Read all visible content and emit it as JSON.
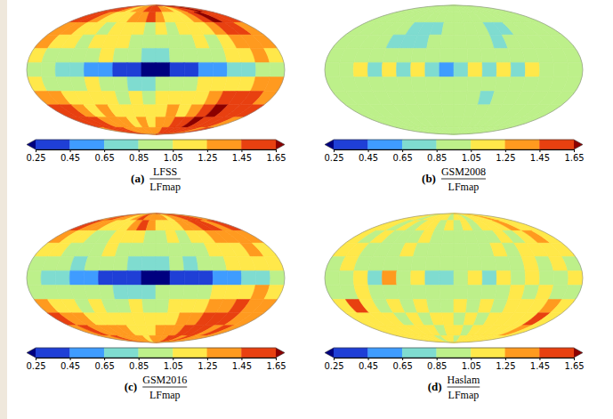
{
  "chart_data": [
    {
      "type": "heatmap",
      "label": "(a)",
      "title": {
        "numerator": "LFSS",
        "denominator": "LFmap"
      },
      "cells": [
        [
          1.5,
          1.6,
          1.5,
          1.3,
          1.2,
          1.3,
          1.4,
          1.5,
          1.6,
          1.5,
          1.4,
          1.3,
          1.2,
          1.3,
          1.5,
          1.6,
          1.7,
          1.5
        ],
        [
          1.6,
          1.5,
          1.3,
          1.2,
          1.1,
          1.2,
          1.3,
          1.4,
          1.5,
          1.4,
          1.2,
          1.1,
          1.2,
          1.3,
          1.5,
          1.7,
          1.6,
          1.5
        ],
        [
          1.4,
          1.3,
          1.2,
          1.1,
          1.0,
          1.1,
          1.2,
          1.1,
          1.0,
          1.1,
          1.0,
          1.1,
          1.2,
          1.1,
          1.3,
          1.5,
          1.6,
          1.4
        ],
        [
          1.3,
          1.2,
          1.1,
          1.0,
          1.1,
          1.2,
          1.1,
          1.0,
          0.9,
          1.0,
          0.9,
          1.0,
          1.1,
          1.0,
          1.2,
          1.3,
          1.4,
          1.3
        ],
        [
          1.1,
          1.0,
          0.9,
          0.9,
          1.0,
          1.1,
          1.0,
          0.9,
          0.8,
          0.8,
          0.9,
          0.9,
          1.0,
          1.0,
          1.1,
          1.2,
          1.3,
          1.2
        ],
        [
          1.0,
          0.9,
          0.8,
          0.7,
          0.6,
          0.5,
          0.4,
          0.3,
          0.2,
          0.2,
          0.3,
          0.4,
          0.5,
          0.6,
          0.7,
          0.8,
          0.9,
          1.0
        ],
        [
          1.1,
          1.0,
          0.9,
          1.0,
          1.1,
          1.0,
          0.9,
          0.8,
          0.8,
          0.9,
          0.9,
          1.0,
          1.1,
          1.2,
          1.1,
          1.2,
          1.4,
          1.3
        ],
        [
          1.4,
          1.3,
          1.2,
          1.1,
          1.2,
          1.1,
          1.0,
          1.1,
          1.0,
          1.1,
          1.2,
          1.1,
          1.2,
          1.4,
          1.5,
          1.6,
          1.5,
          1.4
        ],
        [
          1.6,
          1.5,
          1.4,
          1.2,
          1.3,
          1.2,
          1.1,
          1.2,
          1.1,
          1.2,
          1.3,
          1.2,
          1.4,
          1.6,
          1.7,
          1.6,
          1.5,
          1.5
        ],
        [
          1.5,
          1.6,
          1.5,
          1.4,
          1.3,
          1.4,
          1.2,
          1.3,
          1.2,
          1.3,
          1.4,
          1.5,
          1.6,
          1.7,
          1.6,
          1.5,
          1.6,
          1.4
        ],
        [
          1.4,
          1.5,
          1.6,
          1.5,
          1.4,
          1.3,
          1.4,
          1.3,
          1.3,
          1.4,
          1.5,
          1.6,
          1.6,
          1.5,
          1.6,
          1.5,
          1.4,
          1.5
        ]
      ],
      "colorbar": {
        "range": [
          0.25,
          1.65
        ],
        "ticks": [
          0.25,
          0.45,
          0.65,
          0.85,
          1.05,
          1.25,
          1.45,
          1.65
        ],
        "colors": [
          "#00007f",
          "#1f3fd6",
          "#3f9cff",
          "#7fdcd0",
          "#bdf08a",
          "#ffe84a",
          "#ff9a1f",
          "#e84010",
          "#8b0000"
        ]
      }
    },
    {
      "type": "heatmap",
      "label": "(b)",
      "title": {
        "numerator": "GSM2008",
        "denominator": "LFmap"
      },
      "cells": [
        [
          1.0,
          0.9,
          1.0,
          1.0,
          0.9,
          1.0,
          1.0,
          0.9,
          1.0,
          1.0,
          0.9,
          1.0,
          1.0,
          0.9,
          1.0,
          1.0,
          0.9,
          1.0
        ],
        [
          0.9,
          1.0,
          1.0,
          0.9,
          1.0,
          1.0,
          0.9,
          1.0,
          1.0,
          0.9,
          1.0,
          1.0,
          0.9,
          1.0,
          1.0,
          0.9,
          1.0,
          1.0
        ],
        [
          1.0,
          0.9,
          0.9,
          1.0,
          1.0,
          0.8,
          0.7,
          0.8,
          1.0,
          1.0,
          0.9,
          1.0,
          0.8,
          0.7,
          0.9,
          1.0,
          0.9,
          1.0
        ],
        [
          1.0,
          1.0,
          0.9,
          0.9,
          0.8,
          0.7,
          0.8,
          0.9,
          1.0,
          0.9,
          1.0,
          0.9,
          0.8,
          0.9,
          1.0,
          1.0,
          1.0,
          0.9
        ],
        [
          0.9,
          1.0,
          1.0,
          0.9,
          0.9,
          1.0,
          1.0,
          0.9,
          0.9,
          1.0,
          0.9,
          1.0,
          1.0,
          0.9,
          0.9,
          1.0,
          0.9,
          1.0
        ],
        [
          1.0,
          0.9,
          1.1,
          0.8,
          1.1,
          0.7,
          1.2,
          0.8,
          0.6,
          0.7,
          1.1,
          0.8,
          1.2,
          0.7,
          1.1,
          0.9,
          1.0,
          1.0
        ],
        [
          1.0,
          0.9,
          1.0,
          1.0,
          0.9,
          1.0,
          0.9,
          1.0,
          1.0,
          0.9,
          1.0,
          1.0,
          0.9,
          1.0,
          0.9,
          1.0,
          1.0,
          0.9
        ],
        [
          0.9,
          1.0,
          1.0,
          0.9,
          1.0,
          0.9,
          1.0,
          1.0,
          0.9,
          1.0,
          1.0,
          0.8,
          0.9,
          1.0,
          1.0,
          0.9,
          1.0,
          1.0
        ],
        [
          1.0,
          1.0,
          0.9,
          1.0,
          1.0,
          1.0,
          0.9,
          1.0,
          1.0,
          1.0,
          0.9,
          1.0,
          1.0,
          0.9,
          1.0,
          1.0,
          0.9,
          1.0
        ],
        [
          1.0,
          0.9,
          1.0,
          1.0,
          0.9,
          1.0,
          1.0,
          1.0,
          0.9,
          1.0,
          1.0,
          0.9,
          1.0,
          1.0,
          1.0,
          0.9,
          1.0,
          1.0
        ],
        [
          0.9,
          1.0,
          1.0,
          0.9,
          1.0,
          1.0,
          0.9,
          1.0,
          1.0,
          0.9,
          1.0,
          1.0,
          0.9,
          1.0,
          1.0,
          0.9,
          1.0,
          1.0
        ]
      ],
      "colorbar": {
        "range": [
          0.25,
          1.65
        ],
        "ticks": [
          0.25,
          0.45,
          0.65,
          0.85,
          1.05,
          1.25,
          1.45,
          1.65
        ],
        "colors": [
          "#00007f",
          "#1f3fd6",
          "#3f9cff",
          "#7fdcd0",
          "#bdf08a",
          "#ffe84a",
          "#ff9a1f",
          "#e84010",
          "#8b0000"
        ]
      }
    },
    {
      "type": "heatmap",
      "label": "(c)",
      "title": {
        "numerator": "GSM2016",
        "denominator": "LFmap"
      },
      "cells": [
        [
          1.4,
          1.5,
          1.4,
          1.3,
          1.2,
          1.3,
          1.5,
          1.4,
          1.3,
          1.4,
          1.3,
          1.2,
          1.3,
          1.4,
          1.5,
          1.6,
          1.5,
          1.4
        ],
        [
          1.5,
          1.4,
          1.3,
          1.2,
          1.1,
          1.2,
          1.3,
          1.5,
          1.4,
          1.2,
          1.1,
          1.2,
          1.3,
          1.4,
          1.6,
          1.5,
          1.4,
          1.5
        ],
        [
          1.3,
          1.2,
          1.1,
          1.0,
          1.0,
          1.1,
          1.2,
          1.1,
          1.0,
          1.0,
          1.1,
          1.0,
          1.1,
          1.2,
          1.3,
          1.4,
          1.3,
          1.3
        ],
        [
          1.2,
          1.1,
          1.0,
          0.9,
          1.0,
          1.1,
          1.0,
          0.9,
          0.9,
          0.9,
          1.0,
          0.9,
          1.0,
          1.1,
          1.2,
          1.2,
          1.3,
          1.2
        ],
        [
          1.0,
          0.9,
          0.9,
          0.8,
          0.9,
          1.0,
          0.9,
          0.8,
          0.8,
          0.8,
          0.9,
          0.8,
          0.9,
          1.0,
          1.1,
          1.1,
          1.2,
          1.1
        ],
        [
          0.9,
          0.8,
          0.7,
          0.6,
          0.5,
          0.4,
          0.3,
          0.3,
          0.2,
          0.2,
          0.3,
          0.3,
          0.4,
          0.5,
          0.6,
          0.7,
          0.8,
          0.9
        ],
        [
          1.0,
          0.9,
          0.9,
          0.9,
          1.0,
          0.9,
          0.8,
          0.8,
          0.8,
          0.9,
          0.9,
          1.0,
          1.0,
          1.1,
          1.1,
          1.2,
          1.3,
          1.2
        ],
        [
          1.3,
          1.2,
          1.1,
          1.0,
          1.1,
          1.0,
          1.0,
          1.1,
          1.0,
          1.0,
          1.1,
          1.1,
          1.2,
          1.3,
          1.4,
          1.5,
          1.4,
          1.3
        ],
        [
          1.5,
          1.4,
          1.3,
          1.2,
          1.2,
          1.1,
          1.1,
          1.2,
          1.1,
          1.2,
          1.2,
          1.3,
          1.3,
          1.5,
          1.6,
          1.5,
          1.4,
          1.4
        ],
        [
          1.4,
          1.5,
          1.4,
          1.3,
          1.3,
          1.3,
          1.2,
          1.2,
          1.2,
          1.3,
          1.3,
          1.4,
          1.5,
          1.6,
          1.5,
          1.4,
          1.5,
          1.4
        ],
        [
          1.3,
          1.4,
          1.5,
          1.4,
          1.3,
          1.3,
          1.3,
          1.2,
          1.3,
          1.3,
          1.4,
          1.5,
          1.5,
          1.4,
          1.5,
          1.4,
          1.4,
          1.4
        ]
      ],
      "colorbar": {
        "range": [
          0.25,
          1.65
        ],
        "ticks": [
          0.25,
          0.45,
          0.65,
          0.85,
          1.05,
          1.25,
          1.45,
          1.65
        ],
        "colors": [
          "#00007f",
          "#1f3fd6",
          "#3f9cff",
          "#7fdcd0",
          "#bdf08a",
          "#ffe84a",
          "#ff9a1f",
          "#e84010",
          "#8b0000"
        ]
      }
    },
    {
      "type": "heatmap",
      "label": "(d)",
      "title": {
        "numerator": "Haslam",
        "denominator": "LFmap"
      },
      "cells": [
        [
          1.1,
          1.2,
          1.1,
          1.0,
          1.1,
          1.1,
          1.2,
          1.1,
          1.0,
          1.1,
          1.1,
          1.0,
          1.1,
          1.2,
          1.1,
          1.3,
          1.2,
          1.1
        ],
        [
          1.2,
          1.1,
          1.0,
          1.1,
          1.0,
          1.1,
          1.1,
          1.0,
          1.1,
          1.0,
          1.1,
          1.0,
          1.1,
          1.1,
          1.2,
          1.3,
          1.2,
          1.2
        ],
        [
          1.1,
          1.0,
          1.1,
          1.0,
          0.9,
          1.0,
          1.1,
          1.0,
          1.0,
          1.0,
          0.9,
          1.0,
          1.0,
          1.1,
          1.0,
          1.2,
          1.3,
          1.1
        ],
        [
          1.1,
          1.1,
          1.0,
          1.0,
          1.0,
          1.1,
          1.0,
          0.9,
          1.0,
          0.9,
          1.0,
          1.0,
          1.1,
          1.0,
          1.1,
          1.1,
          1.2,
          1.1
        ],
        [
          1.0,
          1.1,
          1.0,
          0.9,
          1.0,
          1.0,
          0.9,
          1.0,
          0.9,
          1.0,
          0.9,
          1.0,
          1.0,
          1.0,
          1.1,
          1.0,
          1.1,
          1.0
        ],
        [
          1.0,
          0.9,
          1.2,
          0.8,
          1.3,
          0.9,
          1.1,
          0.8,
          0.7,
          0.9,
          1.1,
          0.7,
          1.2,
          0.9,
          1.1,
          1.0,
          0.9,
          1.1
        ],
        [
          1.0,
          1.0,
          1.1,
          1.0,
          0.9,
          1.0,
          1.0,
          0.9,
          1.0,
          1.0,
          0.9,
          1.0,
          1.0,
          1.1,
          1.0,
          1.1,
          1.0,
          1.0
        ],
        [
          1.1,
          1.6,
          1.1,
          1.0,
          1.1,
          1.0,
          1.1,
          1.0,
          1.0,
          1.1,
          1.0,
          1.1,
          1.0,
          1.1,
          1.2,
          1.1,
          1.4,
          1.1
        ],
        [
          1.1,
          1.2,
          1.1,
          1.1,
          1.0,
          1.1,
          1.0,
          1.1,
          1.1,
          1.0,
          1.1,
          1.0,
          1.1,
          1.2,
          1.1,
          1.2,
          1.5,
          1.2
        ],
        [
          1.2,
          1.1,
          1.1,
          1.2,
          1.1,
          1.1,
          1.1,
          1.0,
          1.1,
          1.1,
          1.0,
          1.1,
          1.1,
          1.2,
          1.2,
          1.1,
          1.3,
          1.2
        ],
        [
          1.1,
          1.2,
          1.1,
          1.1,
          1.2,
          1.1,
          1.0,
          1.1,
          1.1,
          1.0,
          1.1,
          1.1,
          1.2,
          1.1,
          1.2,
          1.2,
          1.1,
          1.2
        ]
      ],
      "colorbar": {
        "range": [
          0.25,
          1.65
        ],
        "ticks": [
          0.25,
          0.45,
          0.65,
          0.85,
          1.05,
          1.25,
          1.45,
          1.65
        ],
        "colors": [
          "#00007f",
          "#1f3fd6",
          "#3f9cff",
          "#7fdcd0",
          "#bdf08a",
          "#ffe84a",
          "#ff9a1f",
          "#e84010",
          "#8b0000"
        ]
      }
    }
  ]
}
